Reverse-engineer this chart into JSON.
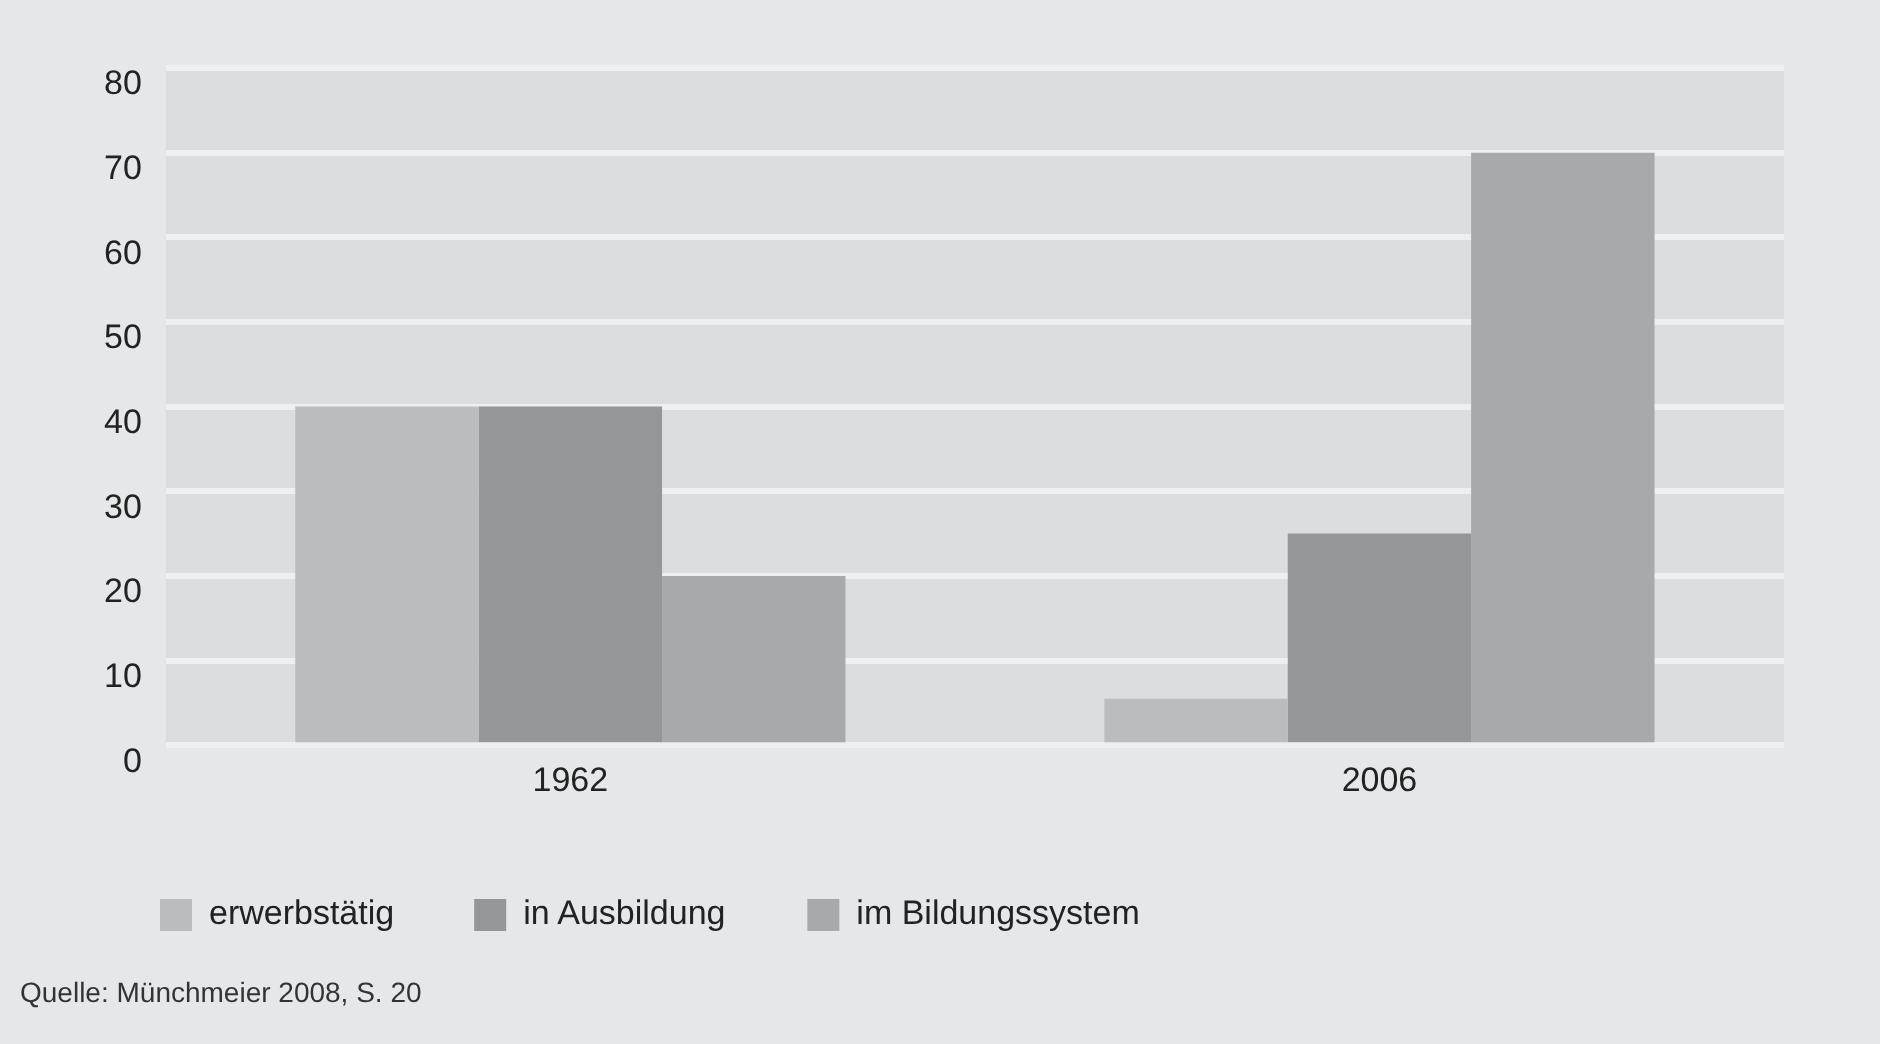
{
  "chart_data": {
    "type": "bar",
    "categories": [
      "1962",
      "2006"
    ],
    "series": [
      {
        "name": "erwerbstätig",
        "color": "#bbbcbf",
        "values": [
          40,
          5.5
        ]
      },
      {
        "name": "in Ausbildung",
        "color": "#959699",
        "values": [
          40,
          25
        ]
      },
      {
        "name": "im Bildungssystem",
        "color": "#a8a9ac",
        "values": [
          20,
          70
        ]
      }
    ],
    "ylim": [
      0,
      80
    ],
    "yticks": [
      0,
      10,
      20,
      30,
      40,
      50,
      60,
      70,
      80
    ],
    "grid": "y",
    "legend": "bottom",
    "annotations": [
      "Quelle: Münchmeier 2008, S. 20"
    ]
  }
}
